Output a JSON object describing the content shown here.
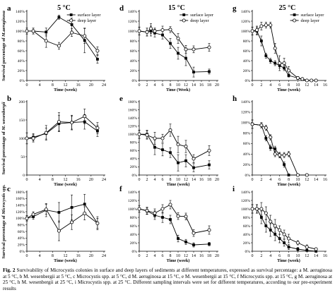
{
  "figure": {
    "column_titles": [
      "5 °C",
      "15 °C",
      "25 °C"
    ],
    "y_labels": [
      [
        "Survival percentage of ",
        "M.aeruginosa"
      ],
      [
        "Survival percentage of ",
        "M. wesenbergii"
      ],
      [
        "Survival percentage of ",
        "Microcystis spp."
      ]
    ],
    "legend": {
      "surface": "surface layer",
      "deep": "deep layer"
    },
    "xlabel_time": "Time (week)",
    "xlabel_time_upper": "Time (Week)"
  },
  "caption": {
    "prefix": "Fig. 2",
    "text": " Survivability of Microcystis colonies in surface and deep layers of sediments at different temperatures, expressed as survival percentage: a M. aeruginosa at 5 °C, b M. wesenbergii at 5 °C, c Microcystis spp. at 5 °C, d M. aeruginosa at 15 °C, e M. wesenbergii at 15 °C, f Microcystis spp. at 15 °C, g M. aeruginosa at 25 °C, h M. wesenbergii at 25 °C, i Microcystis spp. at 25 °C. Different sampling intervals were set for different temperatures, according to our pre-experiment results"
  },
  "chart_data": [
    {
      "panel": "a",
      "type": "line",
      "title": "5 °C",
      "xlabel": "Time (week)",
      "ylabel": "Survival percentage of M.aeruginosa",
      "xlim": [
        0,
        24
      ],
      "xticks": [
        0,
        4,
        8,
        12,
        16,
        20,
        24
      ],
      "ylim": [
        0,
        140
      ],
      "yticks": [
        0,
        20,
        40,
        60,
        80,
        100,
        120,
        140
      ],
      "yunit": "%",
      "legend": "top-right",
      "series": [
        {
          "name": "surface layer",
          "marker": "filled-square",
          "x": [
            0,
            2,
            6,
            10,
            14,
            18,
            22
          ],
          "y": [
            100,
            100,
            98,
            128,
            113,
            81,
            43
          ],
          "err": [
            6,
            6,
            8,
            4,
            13,
            25,
            8
          ]
        },
        {
          "name": "deep layer",
          "marker": "open-circle",
          "x": [
            0,
            2,
            6,
            10,
            14,
            18,
            22
          ],
          "y": [
            100,
            100,
            80,
            70,
            97,
            90,
            60
          ],
          "err": [
            6,
            6,
            13,
            7,
            8,
            15,
            8
          ]
        }
      ]
    },
    {
      "panel": "b",
      "type": "line",
      "xlabel": "Time (week)",
      "ylabel": "Survival percentage of M. wesenbergii",
      "xlim": [
        0,
        24
      ],
      "xticks": [
        0,
        4,
        8,
        12,
        16,
        20,
        24
      ],
      "ylim": [
        0,
        200
      ],
      "yticks": [
        0,
        50,
        100,
        150,
        200
      ],
      "legend": "none",
      "series": [
        {
          "name": "surface layer",
          "marker": "filled-square",
          "x": [
            0,
            2,
            6,
            10,
            14,
            18,
            22
          ],
          "y": [
            100,
            103,
            113,
            140,
            143,
            145,
            120
          ],
          "err": [
            15,
            10,
            15,
            22,
            20,
            20,
            15
          ]
        },
        {
          "name": "deep layer",
          "marker": "open-circle",
          "x": [
            0,
            2,
            6,
            10,
            14,
            18,
            22
          ],
          "y": [
            100,
            100,
            115,
            145,
            143,
            160,
            128
          ],
          "err": [
            15,
            10,
            20,
            25,
            18,
            20,
            15
          ]
        }
      ]
    },
    {
      "panel": "c",
      "type": "line",
      "xlabel": "Time (week)",
      "ylabel": "Survival percentage of Microcystis spp.",
      "xlim": [
        0,
        24
      ],
      "xticks": [
        0,
        4,
        8,
        12,
        16,
        20,
        24
      ],
      "ylim": [
        0,
        180
      ],
      "yticks": [
        0,
        20,
        40,
        60,
        80,
        100,
        120,
        140,
        160,
        180
      ],
      "yunit": "%",
      "legend": "none",
      "series": [
        {
          "name": "surface layer",
          "marker": "filled-square",
          "x": [
            0,
            2,
            6,
            10,
            14,
            18,
            22
          ],
          "y": [
            100,
            105,
            125,
            118,
            133,
            143,
            85
          ],
          "err": [
            8,
            8,
            20,
            30,
            38,
            30,
            20
          ]
        },
        {
          "name": "deep layer",
          "marker": "open-circle",
          "x": [
            0,
            2,
            6,
            10,
            14,
            18,
            22
          ],
          "y": [
            100,
            112,
            127,
            62,
            88,
            115,
            85
          ],
          "err": [
            8,
            8,
            15,
            30,
            22,
            20,
            15
          ]
        }
      ]
    },
    {
      "panel": "d",
      "type": "line",
      "title": "15 °C",
      "xlabel": "Time (Week)",
      "ylabel": "",
      "xlim": [
        0,
        20
      ],
      "xticks": [
        0,
        2,
        4,
        6,
        8,
        10,
        12,
        14,
        16,
        18,
        20
      ],
      "ylim": [
        0,
        140
      ],
      "yticks": [
        0,
        20,
        40,
        60,
        80,
        100,
        120,
        140
      ],
      "yunit": "%",
      "legend": "top-right",
      "series": [
        {
          "name": "surface layer",
          "marker": "filled-square",
          "x": [
            0,
            2,
            3,
            4,
            6,
            8,
            10,
            12,
            14,
            18
          ],
          "y": [
            100,
            98,
            100,
            96,
            92,
            75,
            55,
            45,
            17,
            18
          ],
          "err": [
            8,
            8,
            10,
            8,
            8,
            10,
            12,
            15,
            10,
            5
          ]
        },
        {
          "name": "deep layer",
          "marker": "open-circle",
          "x": [
            0,
            2,
            3,
            4,
            6,
            8,
            10,
            12,
            14,
            18
          ],
          "y": [
            100,
            98,
            105,
            100,
            102,
            103,
            85,
            63,
            63,
            67
          ],
          "err": [
            8,
            8,
            10,
            6,
            8,
            6,
            10,
            8,
            7,
            8
          ]
        }
      ]
    },
    {
      "panel": "e",
      "type": "line",
      "xlabel": "Time (week)",
      "ylabel": "",
      "xlim": [
        0,
        20
      ],
      "xticks": [
        0,
        2,
        4,
        6,
        8,
        10,
        12,
        14,
        16,
        18,
        20
      ],
      "ylim": [
        0,
        180
      ],
      "yticks": [
        0,
        20,
        40,
        60,
        80,
        100,
        120,
        140,
        160,
        180
      ],
      "yunit": "%",
      "legend": "none",
      "series": [
        {
          "name": "surface layer",
          "marker": "filled-square",
          "x": [
            0,
            2,
            4,
            6,
            8,
            10,
            12,
            14,
            18
          ],
          "y": [
            100,
            100,
            68,
            62,
            55,
            30,
            35,
            18,
            25
          ],
          "err": [
            10,
            10,
            18,
            15,
            12,
            20,
            15,
            10,
            10
          ]
        },
        {
          "name": "deep layer",
          "marker": "open-circle",
          "x": [
            0,
            2,
            4,
            6,
            8,
            10,
            12,
            14,
            18
          ],
          "y": [
            100,
            98,
            90,
            90,
            110,
            75,
            70,
            40,
            60
          ],
          "err": [
            10,
            10,
            15,
            10,
            15,
            20,
            15,
            10,
            12
          ]
        }
      ]
    },
    {
      "panel": "f",
      "type": "line",
      "xlabel": "Time (week)",
      "ylabel": "",
      "xlim": [
        0,
        20
      ],
      "xticks": [
        0,
        2,
        4,
        6,
        8,
        10,
        12,
        14,
        16,
        18,
        20
      ],
      "ylim": [
        0,
        140
      ],
      "yticks": [
        0,
        20,
        40,
        60,
        80,
        100,
        120,
        140
      ],
      "yunit": "%",
      "legend": "none",
      "series": [
        {
          "name": "surface layer",
          "marker": "filled-square",
          "x": [
            0,
            2,
            4,
            6,
            8,
            10,
            12,
            14,
            18
          ],
          "y": [
            100,
            95,
            85,
            80,
            75,
            30,
            22,
            15,
            17
          ],
          "err": [
            8,
            8,
            10,
            12,
            10,
            8,
            6,
            5,
            4
          ]
        },
        {
          "name": "deep layer",
          "marker": "open-circle",
          "x": [
            0,
            2,
            4,
            6,
            8,
            10,
            12,
            14,
            18
          ],
          "y": [
            100,
            96,
            90,
            100,
            110,
            83,
            82,
            43,
            50
          ],
          "err": [
            8,
            8,
            10,
            10,
            10,
            8,
            8,
            8,
            10
          ]
        }
      ]
    },
    {
      "panel": "g",
      "type": "line",
      "title": "25 °C",
      "xlabel": "Time (week)",
      "ylabel": "",
      "xlim": [
        0,
        16
      ],
      "xticks": [
        0,
        2,
        4,
        6,
        8,
        10,
        12,
        14,
        16
      ],
      "ylim": [
        0,
        140
      ],
      "yticks": [
        0,
        20,
        40,
        60,
        80,
        100,
        120,
        140
      ],
      "yunit": "%",
      "legend": "top-right",
      "series": [
        {
          "name": "surface layer",
          "marker": "filled-square",
          "x": [
            0,
            1,
            2,
            3,
            4,
            5,
            6,
            7,
            8,
            10,
            11,
            12,
            13,
            14
          ],
          "y": [
            100,
            100,
            80,
            50,
            40,
            35,
            30,
            25,
            10,
            5,
            2,
            0,
            0,
            0
          ],
          "err": [
            8,
            8,
            10,
            5,
            5,
            5,
            5,
            5,
            3,
            2,
            1,
            0,
            0,
            0
          ]
        },
        {
          "name": "deep layer",
          "marker": "open-circle",
          "x": [
            0,
            1,
            2,
            3,
            4,
            5,
            6,
            7,
            8,
            10,
            11,
            12,
            13,
            14
          ],
          "y": [
            100,
            102,
            110,
            112,
            112,
            65,
            35,
            35,
            20,
            5,
            3,
            0,
            0,
            0
          ],
          "err": [
            8,
            8,
            8,
            6,
            6,
            10,
            15,
            10,
            8,
            3,
            2,
            0,
            0,
            0
          ]
        }
      ]
    },
    {
      "panel": "h",
      "type": "line",
      "xlabel": "Time (week)",
      "ylabel": "",
      "xlim": [
        0,
        16
      ],
      "xticks": [
        0,
        2,
        4,
        6,
        8,
        10,
        12,
        14,
        16
      ],
      "ylim": [
        0,
        140
      ],
      "yticks": [
        0,
        20,
        40,
        60,
        80,
        100,
        120,
        140
      ],
      "yunit": "%",
      "legend": "none",
      "series": [
        {
          "name": "surface layer",
          "marker": "filled-square",
          "x": [
            0,
            2,
            3,
            4,
            5,
            6,
            7,
            8,
            10,
            12
          ],
          "y": [
            97,
            95,
            70,
            52,
            50,
            38,
            20,
            0,
            0,
            0
          ],
          "err": [
            8,
            5,
            5,
            5,
            5,
            5,
            5,
            0,
            0,
            0
          ]
        },
        {
          "name": "deep layer",
          "marker": "open-circle",
          "x": [
            0,
            2,
            3,
            4,
            5,
            6,
            7,
            8,
            10,
            12
          ],
          "y": [
            97,
            95,
            90,
            72,
            40,
            38,
            38,
            40,
            0,
            0
          ],
          "err": [
            8,
            5,
            5,
            5,
            5,
            5,
            5,
            5,
            0,
            0
          ]
        }
      ]
    },
    {
      "panel": "i",
      "type": "line",
      "xlabel": "Time (week)",
      "ylabel": "",
      "xlim": [
        0,
        16
      ],
      "xticks": [
        0,
        2,
        4,
        6,
        8,
        10,
        12,
        14,
        16
      ],
      "ylim": [
        0,
        140
      ],
      "yticks": [
        0,
        20,
        40,
        60,
        80,
        100,
        120,
        140
      ],
      "yunit": "%",
      "legend": "none",
      "series": [
        {
          "name": "surface layer",
          "marker": "filled-square",
          "x": [
            0,
            1,
            2,
            3,
            4,
            5,
            6,
            7,
            8,
            10,
            12,
            14
          ],
          "y": [
            100,
            100,
            80,
            60,
            50,
            40,
            30,
            20,
            10,
            5,
            2,
            0
          ],
          "err": [
            10,
            10,
            15,
            15,
            15,
            15,
            10,
            8,
            6,
            4,
            2,
            0
          ]
        },
        {
          "name": "deep layer",
          "marker": "open-circle",
          "x": [
            0,
            1,
            2,
            3,
            4,
            5,
            6,
            7,
            8,
            10,
            12,
            14
          ],
          "y": [
            100,
            100,
            100,
            90,
            70,
            60,
            50,
            40,
            30,
            20,
            10,
            5
          ],
          "err": [
            10,
            10,
            15,
            15,
            15,
            15,
            10,
            10,
            10,
            5,
            5,
            3
          ]
        }
      ]
    }
  ]
}
